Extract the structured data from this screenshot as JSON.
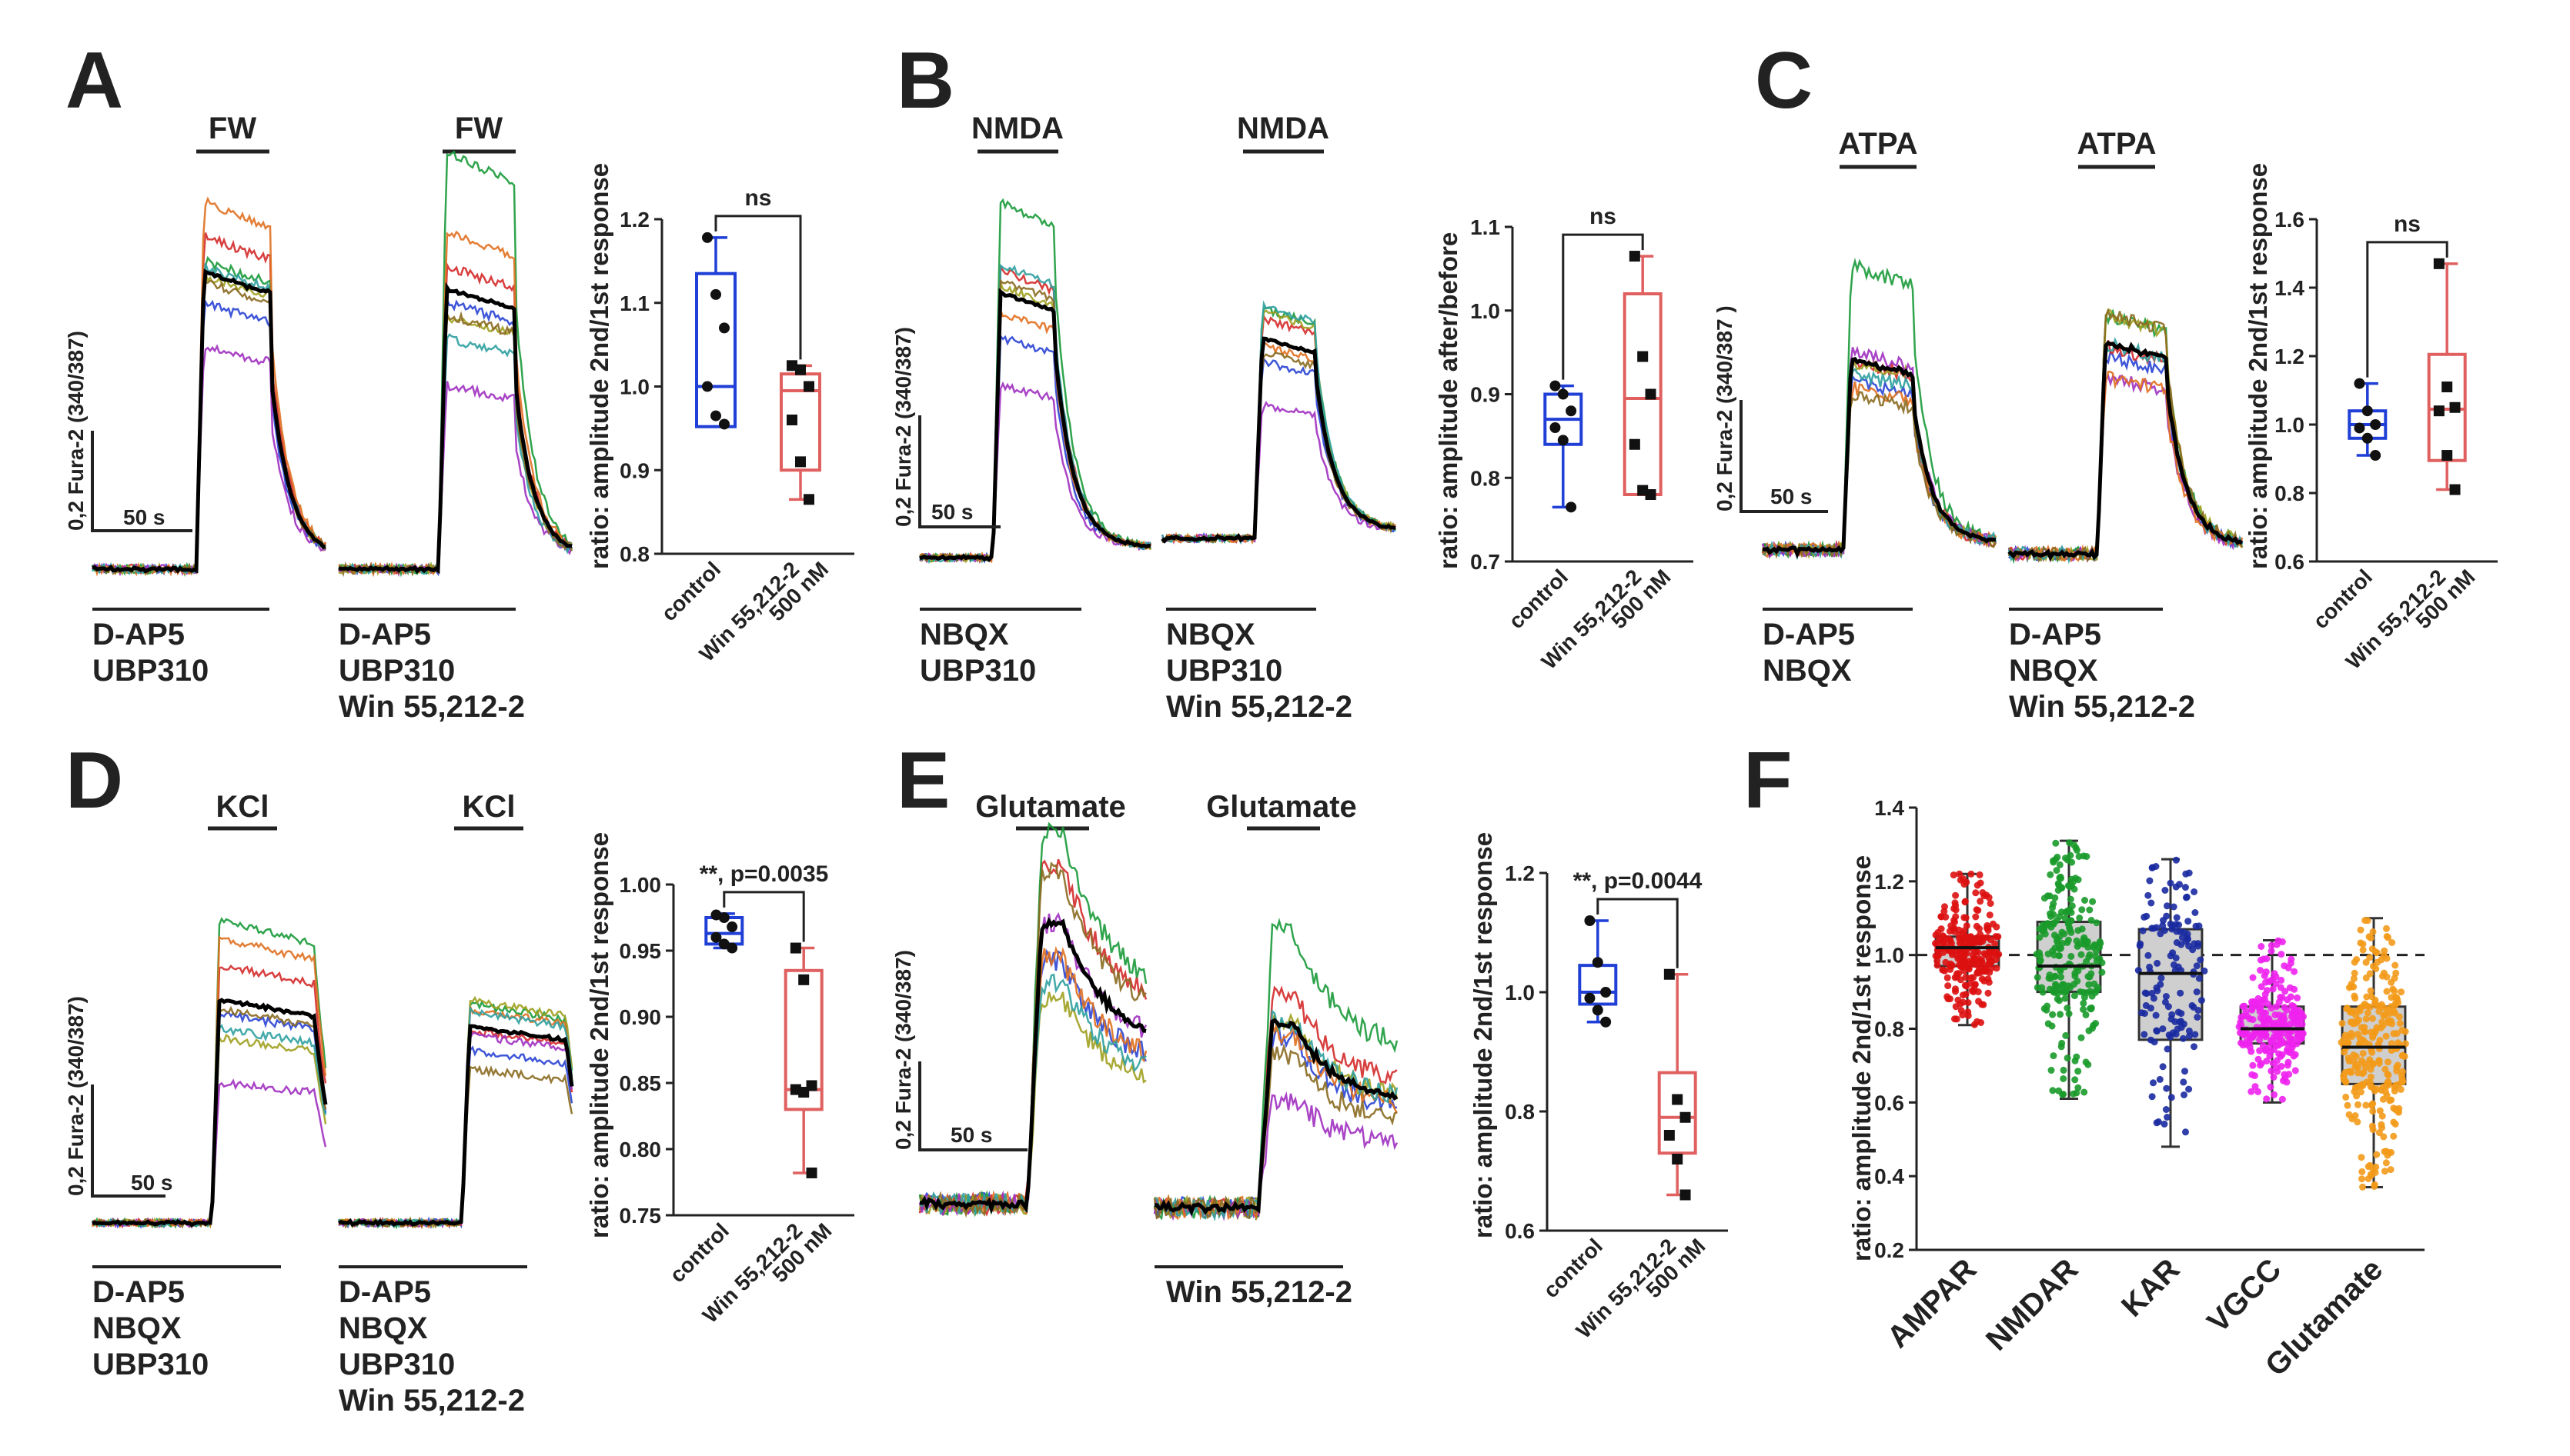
{
  "figure": {
    "panels": {
      "A": {
        "label": "A",
        "stimulus": "FW",
        "scale_y_label": "0,2 Fura-2 (340/387)",
        "scale_x_label": "50 s",
        "left_conditions": [
          "D-AP5",
          "UBP310"
        ],
        "right_conditions": [
          "D-AP5",
          "UBP310",
          "Win 55,212-2"
        ],
        "box": {
          "ylabel": "ratio: amplitude 2nd/1st response",
          "ylim": [
            0.8,
            1.2
          ],
          "yticks": [
            "0.8",
            "0.9",
            "1.0",
            "1.1",
            "1.2"
          ],
          "categories": [
            "control",
            "Win 55,212-2",
            "500 nM"
          ],
          "significance": "ns"
        }
      },
      "B": {
        "label": "B",
        "stimulus": "NMDA",
        "scale_y_label": "0,2 Fura-2 (340/387)",
        "scale_x_label": "50 s",
        "left_conditions": [
          "NBQX",
          "UBP310"
        ],
        "right_conditions": [
          "NBQX",
          "UBP310",
          "Win 55,212-2"
        ],
        "box": {
          "ylabel": "ratio: amplitude after/before",
          "ylim": [
            0.7,
            1.1
          ],
          "yticks": [
            "0.7",
            "0.8",
            "0.9",
            "1.0",
            "1.1"
          ],
          "categories": [
            "control",
            "Win 55,212-2",
            "500 nM"
          ],
          "significance": "ns"
        }
      },
      "C": {
        "label": "C",
        "stimulus": "ATPA",
        "scale_y_label": "0,2 Fura-2 (340/387 )",
        "scale_x_label": "50 s",
        "left_conditions": [
          "D-AP5",
          "NBQX"
        ],
        "right_conditions": [
          "D-AP5",
          "NBQX",
          "Win 55,212-2"
        ],
        "box": {
          "ylabel": "ratio: amplitude 2nd/1st response",
          "ylim": [
            0.6,
            1.6
          ],
          "yticks": [
            "0.6",
            "0.8",
            "1.0",
            "1.2",
            "1.4",
            "1.6"
          ],
          "categories": [
            "control",
            "Win 55,212-2",
            "500 nM"
          ],
          "significance": "ns"
        }
      },
      "D": {
        "label": "D",
        "stimulus": "KCl",
        "scale_y_label": "0,2 Fura-2 (340/387)",
        "scale_x_label": "50 s",
        "left_conditions": [
          "D-AP5",
          "NBQX",
          "UBP310"
        ],
        "right_conditions": [
          "D-AP5",
          "NBQX",
          "UBP310",
          "Win 55,212-2"
        ],
        "box": {
          "ylabel": "ratio: amplitude 2nd/1st response",
          "ylim": [
            0.75,
            1.0
          ],
          "yticks": [
            "0.75",
            "0.80",
            "0.85",
            "0.90",
            "0.95",
            "1.00"
          ],
          "categories": [
            "control",
            "Win 55,212-2",
            "500 nM"
          ],
          "significance": "**, p=0.0035"
        }
      },
      "E": {
        "label": "E",
        "stimulus": "Glutamate",
        "scale_y_label": "0,2 Fura-2 (340/387)",
        "scale_x_label": "50 s",
        "right_conditions": [
          "Win 55,212-2"
        ],
        "box": {
          "ylabel": "ratio: amplitude 2nd/1st response",
          "ylim": [
            0.6,
            1.2
          ],
          "yticks": [
            "0.6",
            "0.8",
            "1.0",
            "1.2"
          ],
          "categories": [
            "control",
            "Win 55,212-2",
            "500 nM"
          ],
          "significance": "**, p=0.0044"
        }
      },
      "F": {
        "label": "F",
        "ylabel": "ratio: amplitude 2nd/1st response",
        "yticks": [
          "0.2",
          "0.4",
          "0.6",
          "0.8",
          "1.0",
          "1.2",
          "1.4"
        ]
      }
    },
    "trace_colors": [
      "#2a44d4",
      "#d42a2a",
      "#1a9a3a",
      "#a0a020",
      "#a030c0",
      "#e07020",
      "#30a0a0",
      "#8a6a20"
    ]
  },
  "chart_data": [
    {
      "panel": "A",
      "type": "box",
      "ylabel": "ratio: amplitude 2nd/1st response",
      "ylim": [
        0.8,
        1.2
      ],
      "series": [
        {
          "name": "control",
          "color": "#1f3fd6",
          "q1": 0.952,
          "median": 1.0,
          "q3": 1.135,
          "min": 0.952,
          "max": 1.178,
          "points": [
            1.178,
            1.11,
            1.07,
            1.0,
            0.965,
            0.955
          ]
        },
        {
          "name": "Win 55,212-2 500 nM",
          "color": "#e06060",
          "q1": 0.9,
          "median": 0.995,
          "q3": 1.015,
          "min": 0.865,
          "max": 1.025,
          "points": [
            1.025,
            1.02,
            1.0,
            0.96,
            0.91,
            0.865
          ]
        }
      ]
    },
    {
      "panel": "B",
      "type": "box",
      "ylabel": "ratio: amplitude after/before",
      "ylim": [
        0.7,
        1.1
      ],
      "series": [
        {
          "name": "control",
          "color": "#1f3fd6",
          "q1": 0.84,
          "median": 0.87,
          "q3": 0.9,
          "min": 0.765,
          "max": 0.91,
          "points": [
            0.91,
            0.9,
            0.88,
            0.86,
            0.845,
            0.765
          ]
        },
        {
          "name": "Win 55,212-2 500 nM",
          "color": "#e06060",
          "q1": 0.78,
          "median": 0.895,
          "q3": 1.02,
          "min": 0.78,
          "max": 1.065,
          "points": [
            1.065,
            0.945,
            0.9,
            0.84,
            0.785,
            0.78
          ]
        }
      ]
    },
    {
      "panel": "C",
      "type": "box",
      "ylabel": "ratio: amplitude 2nd/1st response",
      "ylim": [
        0.6,
        1.6
      ],
      "series": [
        {
          "name": "control",
          "color": "#1f3fd6",
          "q1": 0.96,
          "median": 1.0,
          "q3": 1.04,
          "min": 0.91,
          "max": 1.12,
          "points": [
            1.12,
            1.04,
            1.0,
            0.99,
            0.96,
            0.91
          ]
        },
        {
          "name": "Win 55,212-2 500 nM",
          "color": "#e06060",
          "q1": 0.895,
          "median": 1.045,
          "q3": 1.205,
          "min": 0.81,
          "max": 1.47,
          "points": [
            1.47,
            1.11,
            1.05,
            1.04,
            0.91,
            0.81
          ]
        }
      ]
    },
    {
      "panel": "D",
      "type": "box",
      "ylabel": "ratio: amplitude 2nd/1st response",
      "ylim": [
        0.75,
        1.0
      ],
      "series": [
        {
          "name": "control",
          "color": "#1f3fd6",
          "q1": 0.955,
          "median": 0.963,
          "q3": 0.975,
          "min": 0.952,
          "max": 0.978,
          "points": [
            0.977,
            0.975,
            0.968,
            0.96,
            0.955,
            0.952
          ]
        },
        {
          "name": "Win 55,212-2 500 nM",
          "color": "#e06060",
          "q1": 0.83,
          "median": 0.845,
          "q3": 0.935,
          "min": 0.782,
          "max": 0.952,
          "points": [
            0.952,
            0.928,
            0.848,
            0.845,
            0.843,
            0.782
          ]
        }
      ]
    },
    {
      "panel": "E",
      "type": "box",
      "ylabel": "ratio: amplitude 2nd/1st response",
      "ylim": [
        0.6,
        1.2
      ],
      "series": [
        {
          "name": "control",
          "color": "#1f3fd6",
          "q1": 0.98,
          "median": 1.0,
          "q3": 1.045,
          "min": 0.95,
          "max": 1.12,
          "points": [
            1.12,
            1.05,
            1.0,
            0.99,
            0.97,
            0.95
          ]
        },
        {
          "name": "Win 55,212-2 500 nM",
          "color": "#e06060",
          "q1": 0.73,
          "median": 0.79,
          "q3": 0.865,
          "min": 0.66,
          "max": 1.03,
          "points": [
            1.03,
            0.82,
            0.79,
            0.76,
            0.72,
            0.66
          ]
        }
      ]
    },
    {
      "panel": "F",
      "type": "box",
      "ylabel": "ratio: amplitude 2nd/1st response",
      "ylim": [
        0.2,
        1.4
      ],
      "reference_line": 1.0,
      "series": [
        {
          "name": "AMPAR",
          "color": "#dd1111",
          "q1": 0.97,
          "median": 1.02,
          "q3": 1.05,
          "min": 0.81,
          "max": 1.22,
          "n": 260
        },
        {
          "name": "NMDAR",
          "color": "#1a9a2a",
          "q1": 0.9,
          "median": 0.97,
          "q3": 1.09,
          "min": 0.61,
          "max": 1.31,
          "n": 240
        },
        {
          "name": "KAR",
          "color": "#1a2aa0",
          "q1": 0.77,
          "median": 0.95,
          "q3": 1.07,
          "min": 0.48,
          "max": 1.26,
          "n": 140
        },
        {
          "name": "VGCC",
          "color": "#ee22ee",
          "q1": 0.76,
          "median": 0.8,
          "q3": 0.86,
          "min": 0.6,
          "max": 1.04,
          "n": 240
        },
        {
          "name": "Glutamate",
          "color": "#f39a1a",
          "q1": 0.65,
          "median": 0.75,
          "q3": 0.86,
          "min": 0.37,
          "max": 1.1,
          "n": 280
        }
      ]
    }
  ]
}
